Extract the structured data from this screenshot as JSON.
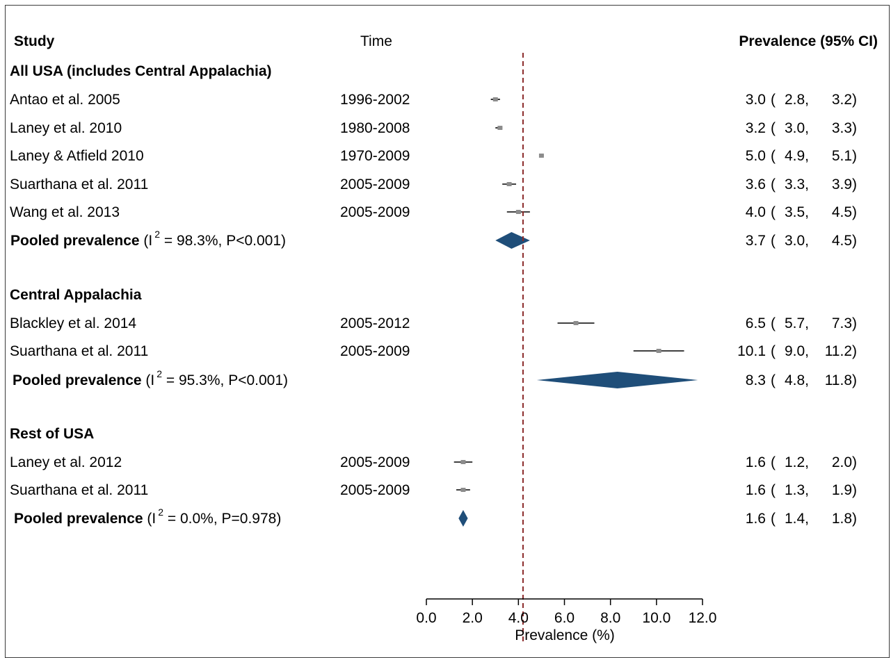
{
  "chart_data": {
    "type": "forest",
    "headers": {
      "study": "Study",
      "time": "Time",
      "estimate": "Prevalence (95% CI)"
    },
    "xlabel": "Prevalence (%)",
    "xlim": [
      0,
      12
    ],
    "xticks": [
      0,
      2,
      4,
      6,
      8,
      10,
      12
    ],
    "tick_labels": [
      "0.0",
      "2.0",
      "4.0",
      "6.0",
      "8.0",
      "10.0",
      "12.0"
    ],
    "reference_line": 4.2,
    "groups": [
      {
        "name": "All USA (includes Central Appalachia)",
        "studies": [
          {
            "study": "Antao et al. 2005",
            "time": "1996-2002",
            "est": 3.0,
            "lo": 2.8,
            "hi": 3.2,
            "est_text": "3.0",
            "lo_text": "2.8,",
            "hi_text": "3.2)"
          },
          {
            "study": "Laney et al. 2010",
            "time": "1980-2008",
            "est": 3.2,
            "lo": 3.0,
            "hi": 3.3,
            "est_text": "3.2",
            "lo_text": "3.0,",
            "hi_text": "3.3)"
          },
          {
            "study": "Laney & Atfield 2010",
            "time": "1970-2009",
            "est": 5.0,
            "lo": 4.9,
            "hi": 5.1,
            "est_text": "5.0",
            "lo_text": "4.9,",
            "hi_text": "5.1)"
          },
          {
            "study": "Suarthana et al. 2011",
            "time": "2005-2009",
            "est": 3.6,
            "lo": 3.3,
            "hi": 3.9,
            "est_text": "3.6",
            "lo_text": "3.3,",
            "hi_text": "3.9)"
          },
          {
            "study": "Wang et al. 2013",
            "time": "2005-2009",
            "est": 4.0,
            "lo": 3.5,
            "hi": 4.5,
            "est_text": "4.0",
            "lo_text": "3.5,",
            "hi_text": "4.5)"
          }
        ],
        "pooled": {
          "label": "Pooled prevalence",
          "stat_pre": " (I",
          "sup": "2",
          "stat_post": " = 98.3%, P<0.001)",
          "est": 3.7,
          "lo": 3.0,
          "hi": 4.5,
          "est_text": "3.7",
          "lo_text": "3.0,",
          "hi_text": "4.5)"
        }
      },
      {
        "name": "Central Appalachia",
        "studies": [
          {
            "study": "Blackley et al. 2014",
            "time": "2005-2012",
            "est": 6.5,
            "lo": 5.7,
            "hi": 7.3,
            "est_text": "6.5",
            "lo_text": "5.7,",
            "hi_text": "7.3)"
          },
          {
            "study": "Suarthana et al. 2011",
            "time": "2005-2009",
            "est": 10.1,
            "lo": 9.0,
            "hi": 11.2,
            "est_text": "10.1",
            "lo_text": "9.0,",
            "hi_text": "11.2)"
          }
        ],
        "pooled": {
          "label": "Pooled prevalence",
          "stat_pre": " (I",
          "sup": "2",
          "stat_post": " = 95.3%, P<0.001)",
          "est": 8.3,
          "lo": 4.8,
          "hi": 11.8,
          "est_text": "8.3",
          "lo_text": "4.8,",
          "hi_text": "11.8)"
        }
      },
      {
        "name": "Rest of USA",
        "studies": [
          {
            "study": "Laney et al. 2012",
            "time": "2005-2009",
            "est": 1.6,
            "lo": 1.2,
            "hi": 2.0,
            "est_text": "1.6",
            "lo_text": "1.2,",
            "hi_text": "2.0)"
          },
          {
            "study": "Suarthana et al. 2011",
            "time": "2005-2009",
            "est": 1.6,
            "lo": 1.3,
            "hi": 1.9,
            "est_text": "1.6",
            "lo_text": "1.3,",
            "hi_text": "1.9)"
          }
        ],
        "pooled": {
          "label": "Pooled prevalence",
          "stat_pre": " (I",
          "sup": "2",
          "stat_post": " = 0.0%, P=0.978)",
          "est": 1.6,
          "lo": 1.4,
          "hi": 1.8,
          "est_text": "1.6",
          "lo_text": "1.4,",
          "hi_text": "1.8)"
        }
      }
    ],
    "colors": {
      "diamond": "#1f4e79",
      "marker": "#8c8c8c",
      "ci_line": "#000000",
      "reference_line": "#8b2a2a"
    }
  }
}
